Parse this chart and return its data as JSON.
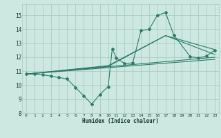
{
  "title": "",
  "xlabel": "Humidex (Indice chaleur)",
  "xlim": [
    -0.5,
    23.5
  ],
  "ylim": [
    8,
    15.8
  ],
  "xticks": [
    0,
    1,
    2,
    3,
    4,
    5,
    6,
    7,
    8,
    9,
    10,
    11,
    12,
    13,
    14,
    15,
    16,
    17,
    18,
    19,
    20,
    21,
    22,
    23
  ],
  "yticks": [
    8,
    9,
    10,
    11,
    12,
    13,
    14,
    15
  ],
  "bg_color": "#cce8e0",
  "grid_color": "#aaccC4",
  "line_color": "#2d7a6a",
  "series": [
    [
      0,
      10.8
    ],
    [
      1,
      10.8
    ],
    [
      2,
      10.75
    ],
    [
      3,
      10.65
    ],
    [
      4,
      10.55
    ],
    [
      5,
      10.45
    ],
    [
      6,
      9.85
    ],
    [
      7,
      9.25
    ],
    [
      8,
      8.65
    ],
    [
      9,
      9.35
    ],
    [
      10,
      9.9
    ],
    [
      10.5,
      12.6
    ],
    [
      11,
      11.95
    ],
    [
      12,
      11.55
    ],
    [
      13,
      11.6
    ],
    [
      14,
      13.9
    ],
    [
      15,
      14.0
    ],
    [
      16,
      15.0
    ],
    [
      17,
      15.2
    ],
    [
      18,
      13.6
    ],
    [
      20,
      12.05
    ],
    [
      21,
      11.95
    ],
    [
      22,
      12.1
    ],
    [
      23,
      12.5
    ]
  ],
  "line_fan": [
    [
      [
        0,
        10.8
      ],
      [
        10,
        11.4
      ],
      [
        17,
        13.55
      ],
      [
        23,
        12.55
      ]
    ],
    [
      [
        0,
        10.8
      ],
      [
        10,
        11.35
      ],
      [
        17,
        13.55
      ],
      [
        23,
        12.2
      ]
    ],
    [
      [
        0,
        10.8
      ],
      [
        23,
        12.0
      ]
    ],
    [
      [
        0,
        10.8
      ],
      [
        23,
        11.85
      ]
    ]
  ]
}
